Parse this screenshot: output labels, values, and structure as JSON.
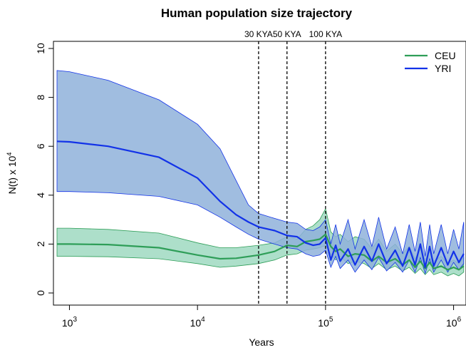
{
  "chart_data": {
    "type": "line",
    "title": "Human population size trajectory",
    "xlabel": "Years",
    "ylabel": "N(t) x 10⁴",
    "x_scale": "log",
    "xlim": [
      750,
      1250000
    ],
    "ylim": [
      0,
      10
    ],
    "x_ticks": [
      {
        "value": 1000,
        "base": "10",
        "exp": "3"
      },
      {
        "value": 10000,
        "base": "10",
        "exp": "4"
      },
      {
        "value": 100000,
        "base": "10",
        "exp": "5"
      },
      {
        "value": 1000000,
        "base": "10",
        "exp": "6"
      }
    ],
    "y_ticks": [
      0,
      2,
      4,
      6,
      8,
      10
    ],
    "vlines": [
      {
        "x": 30000,
        "label": "30 KYA"
      },
      {
        "x": 50000,
        "label": "50 KYA"
      },
      {
        "x": 100000,
        "label": "100 KYA"
      }
    ],
    "legend": {
      "position": "top-right"
    },
    "series": [
      {
        "name": "CEU",
        "color": "#2e9e58",
        "band_color": "#9fd9c1",
        "x": [
          800,
          1000,
          2000,
          5000,
          10000,
          15000,
          20000,
          30000,
          40000,
          50000,
          60000,
          70000,
          80000,
          90000,
          100000,
          110000,
          120000,
          130000,
          150000,
          170000,
          200000,
          230000,
          260000,
          300000,
          350000,
          400000,
          450000,
          500000,
          550000,
          600000,
          650000,
          700000,
          800000,
          900000,
          1000000,
          1100000,
          1200000
        ],
        "values": [
          2.0,
          2.0,
          1.98,
          1.85,
          1.55,
          1.4,
          1.42,
          1.55,
          1.7,
          1.95,
          1.9,
          2.1,
          2.15,
          2.2,
          2.4,
          1.9,
          1.7,
          1.8,
          1.5,
          1.6,
          1.55,
          1.3,
          1.5,
          1.25,
          1.4,
          1.15,
          1.35,
          1.05,
          1.3,
          1.0,
          1.25,
          1.0,
          1.1,
          0.95,
          1.05,
          0.95,
          1.1
        ],
        "lower": [
          1.5,
          1.5,
          1.48,
          1.4,
          1.2,
          1.05,
          1.1,
          1.2,
          1.35,
          1.55,
          1.6,
          1.75,
          1.8,
          1.85,
          1.95,
          1.6,
          1.35,
          1.5,
          1.2,
          1.3,
          1.2,
          1.0,
          1.2,
          0.95,
          1.1,
          0.9,
          1.05,
          0.8,
          1.0,
          0.75,
          0.95,
          0.75,
          0.85,
          0.7,
          0.8,
          0.7,
          0.85
        ],
        "upper": [
          2.65,
          2.65,
          2.6,
          2.45,
          2.05,
          1.85,
          1.85,
          1.95,
          2.05,
          2.3,
          2.2,
          2.6,
          2.75,
          3.0,
          3.45,
          2.5,
          2.3,
          2.4,
          2.1,
          2.3,
          2.2,
          1.8,
          2.2,
          1.7,
          2.0,
          1.6,
          1.9,
          1.4,
          1.8,
          1.35,
          1.7,
          1.3,
          1.5,
          1.2,
          1.35,
          1.2,
          1.45
        ]
      },
      {
        "name": "YRI",
        "color": "#1232e8",
        "band_color": "#8fb2da",
        "x": [
          800,
          1000,
          2000,
          5000,
          10000,
          15000,
          20000,
          25000,
          30000,
          40000,
          50000,
          60000,
          70000,
          80000,
          90000,
          100000,
          110000,
          120000,
          130000,
          150000,
          170000,
          200000,
          230000,
          260000,
          300000,
          350000,
          400000,
          450000,
          500000,
          550000,
          600000,
          650000,
          700000,
          800000,
          900000,
          1000000,
          1100000,
          1200000
        ],
        "values": [
          6.2,
          6.18,
          6.0,
          5.55,
          4.7,
          3.75,
          3.2,
          2.9,
          2.7,
          2.55,
          2.35,
          2.3,
          2.05,
          1.95,
          2.0,
          2.25,
          1.35,
          1.95,
          1.3,
          1.8,
          1.15,
          1.9,
          1.3,
          2.0,
          1.2,
          1.75,
          1.1,
          1.85,
          1.15,
          2.0,
          1.05,
          1.9,
          1.1,
          1.85,
          1.15,
          1.7,
          1.25,
          1.6
        ],
        "lower": [
          4.15,
          4.15,
          4.1,
          3.95,
          3.6,
          3.1,
          2.7,
          2.4,
          2.2,
          2.0,
          1.85,
          1.8,
          1.6,
          1.5,
          1.55,
          1.75,
          1.05,
          1.5,
          1.0,
          1.35,
          0.85,
          1.35,
          0.95,
          1.45,
          0.9,
          1.25,
          0.85,
          1.35,
          0.85,
          1.45,
          0.8,
          1.4,
          0.85,
          1.35,
          0.85,
          1.25,
          0.95,
          1.2
        ],
        "upper": [
          9.1,
          9.05,
          8.7,
          7.9,
          6.9,
          5.9,
          4.6,
          3.6,
          3.25,
          3.05,
          2.9,
          2.85,
          2.6,
          2.55,
          2.7,
          3.0,
          2.0,
          2.8,
          2.0,
          3.0,
          1.8,
          3.0,
          1.9,
          3.1,
          1.8,
          2.7,
          1.6,
          2.8,
          1.7,
          2.9,
          1.5,
          2.8,
          1.6,
          2.8,
          1.6,
          2.6,
          1.8,
          2.9
        ]
      }
    ]
  }
}
